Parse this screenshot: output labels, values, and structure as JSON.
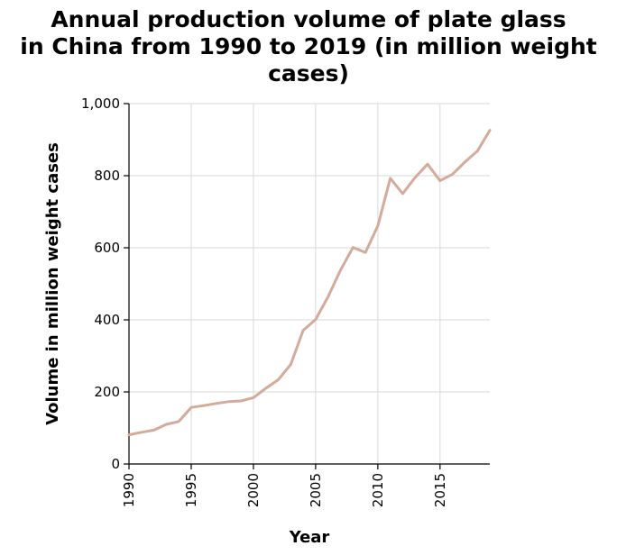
{
  "chart_data": {
    "type": "line",
    "title_lines": [
      "Annual production volume of plate glass",
      "in China from 1990 to 2019 (in million weight",
      "cases)"
    ],
    "xlabel": "Year",
    "ylabel": "Volume in million weight cases",
    "xlim": [
      1990,
      2019
    ],
    "ylim": [
      0,
      1000
    ],
    "x_ticks": [
      1990,
      1995,
      2000,
      2005,
      2010,
      2015
    ],
    "x_tick_labels": [
      "1990",
      "1995",
      "2000",
      "2005",
      "2010",
      "2015"
    ],
    "y_ticks": [
      0,
      200,
      400,
      600,
      800,
      1000
    ],
    "y_tick_labels": [
      "0",
      "200",
      "400",
      "600",
      "800",
      "1,000"
    ],
    "grid": true,
    "line_color": "#d4ab9b",
    "x": [
      1990,
      1991,
      1992,
      1993,
      1994,
      1995,
      1996,
      1997,
      1998,
      1999,
      2000,
      2001,
      2002,
      2003,
      2004,
      2005,
      2006,
      2007,
      2008,
      2009,
      2010,
      2011,
      2012,
      2013,
      2014,
      2015,
      2016,
      2017,
      2018,
      2019
    ],
    "series": [
      {
        "values": [
          81,
          88,
          94,
          110,
          118,
          157,
          162,
          168,
          173,
          175,
          184,
          210,
          234,
          276,
          371,
          401,
          464,
          538,
          601,
          587,
          661,
          793,
          750,
          795,
          832,
          786,
          804,
          838,
          868,
          926
        ]
      }
    ]
  }
}
